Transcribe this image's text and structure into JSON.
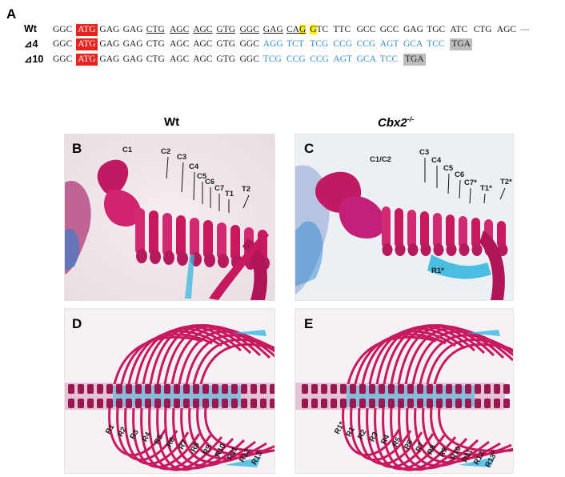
{
  "panelA": {
    "letter": "A",
    "rows": [
      {
        "label": "Wt",
        "codons": [
          "GGC",
          "ATG",
          "GAG",
          "GAG",
          "CTG",
          "AGC",
          "AGC",
          "GTG",
          "GGC",
          "GAG",
          "CAG",
          "GTC",
          "TTC",
          "GCC",
          "GCC",
          "GAG",
          "TGC",
          "ATC",
          "CTG",
          "AGC",
          "---"
        ]
      },
      {
        "label": "⊿4",
        "codons": [
          "GGC",
          "ATG",
          "GAG",
          "GAG",
          "CTG",
          "AGC",
          "AGC",
          "GTG",
          "GGC",
          "AGG",
          "TCT",
          "TCG",
          "CCG",
          "CCG",
          "AGT",
          "GCA",
          "TCC",
          "TGA"
        ]
      },
      {
        "label": "⊿10",
        "codons": [
          "GGC",
          "ATG",
          "GAG",
          "GAG",
          "CTG",
          "AGC",
          "AGC",
          "GTG",
          "GGC",
          "TCG",
          "CCG",
          "CCG",
          "AGT",
          "GCA",
          "TCC",
          "TGA"
        ]
      }
    ]
  },
  "columns": {
    "wt": "Wt",
    "mutant_base": "Cbx2",
    "mutant_sup": "-/-"
  },
  "panelB": {
    "letter": "B",
    "labels": [
      "C1",
      "C2",
      "C3",
      "C4",
      "C5",
      "C6",
      "C7",
      "T1",
      "T2"
    ]
  },
  "panelC": {
    "letter": "C",
    "labels": [
      "C1/C2",
      "C3",
      "C4",
      "C5",
      "C6",
      "C7*",
      "T1*",
      "T2*",
      "R1*"
    ]
  },
  "panelD": {
    "letter": "D",
    "labels": [
      "R1",
      "R2",
      "R3",
      "R4",
      "R5",
      "R6",
      "R7",
      "R8",
      "R9",
      "R10",
      "R11",
      "R12",
      "R13"
    ]
  },
  "panelE": {
    "letter": "E",
    "labels": [
      "R1*",
      "R1",
      "R2",
      "R3",
      "R4",
      "R5",
      "R6",
      "R7",
      "R8",
      "R9",
      "R10",
      "R11",
      "R12",
      "R13*"
    ]
  },
  "colors": {
    "start_codon": "#e8231e",
    "stop_codon": "#bdbdbd",
    "frameshift": "#2f8fd0",
    "highlight": "#f7ee12",
    "alizarin": "#c8195f",
    "alcian": "#38b8e0"
  }
}
